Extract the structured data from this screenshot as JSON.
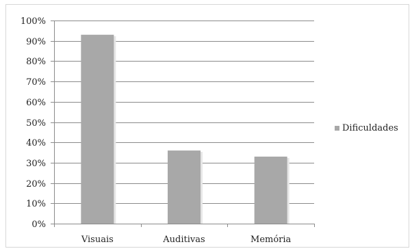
{
  "chart_data": {
    "type": "bar",
    "categories": [
      "Visuais",
      "Auditivas",
      "Memória"
    ],
    "series": [
      {
        "name": "Dificuldades",
        "values": [
          93,
          36,
          33
        ],
        "color": "#a8a8a8"
      }
    ],
    "ylim": [
      0,
      100
    ],
    "yticks": [
      0,
      10,
      20,
      30,
      40,
      50,
      60,
      70,
      80,
      90,
      100
    ],
    "ytick_labels": [
      "0%",
      "10%",
      "20%",
      "30%",
      "40%",
      "50%",
      "60%",
      "70%",
      "80%",
      "90%",
      "100%"
    ],
    "grid": true,
    "legend_position": "right",
    "title": "",
    "xlabel": "",
    "ylabel": ""
  }
}
